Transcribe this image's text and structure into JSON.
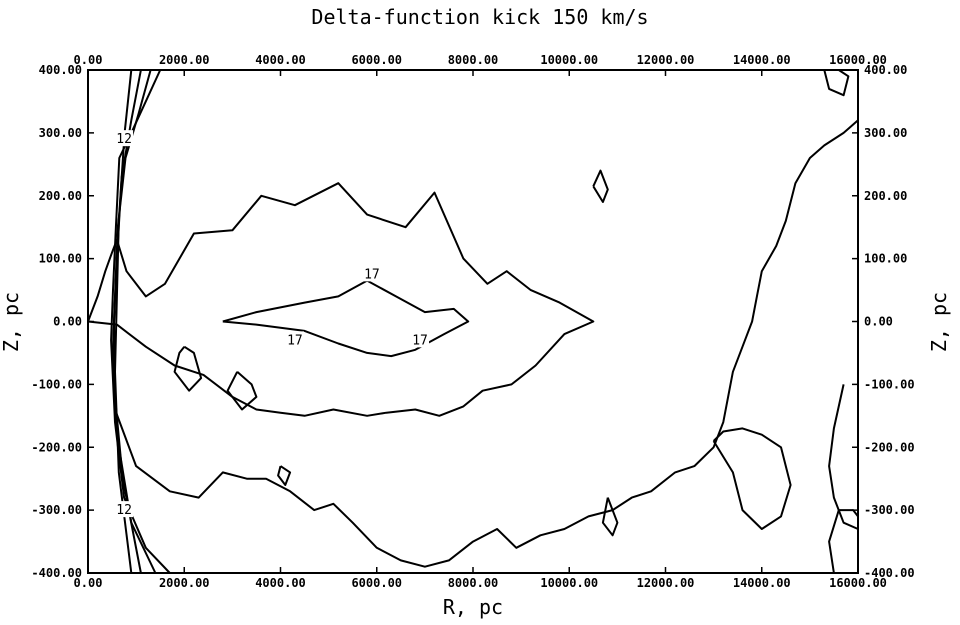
{
  "chart_data": {
    "type": "contour",
    "title": "Delta-function kick 150 km/s",
    "xlabel": "R, pc",
    "ylabel_left": "Z, pc",
    "ylabel_right": "Z, pc",
    "xlim": [
      0,
      16000
    ],
    "ylim": [
      -400,
      400
    ],
    "x_ticks": [
      "0.00",
      "2000.00",
      "4000.00",
      "6000.00",
      "8000.00",
      "10000.00",
      "12000.00",
      "14000.00",
      "16000.00"
    ],
    "y_ticks": [
      "400.00",
      "300.00",
      "200.00",
      "100.00",
      "0.00",
      "-100.00",
      "-200.00",
      "-300.00",
      "-400.00"
    ],
    "contour_labels": [
      {
        "text": "12",
        "x": 750,
        "y": 290
      },
      {
        "text": "12",
        "x": 750,
        "y": -300
      },
      {
        "text": "17",
        "x": 5900,
        "y": 75
      },
      {
        "text": "17",
        "x": 4300,
        "y": -30
      },
      {
        "text": "17",
        "x": 6900,
        "y": -30
      }
    ],
    "contours": [
      {
        "points": [
          [
            1500,
            400
          ],
          [
            1200,
            350
          ],
          [
            900,
            300
          ],
          [
            650,
            260
          ],
          [
            580,
            150
          ],
          [
            520,
            50
          ],
          [
            480,
            -30
          ],
          [
            560,
            -160
          ],
          [
            750,
            -280
          ],
          [
            1200,
            -360
          ],
          [
            1700,
            -400
          ]
        ]
      },
      {
        "points": [
          [
            1300,
            400
          ],
          [
            1050,
            330
          ],
          [
            780,
            260
          ],
          [
            620,
            150
          ],
          [
            560,
            40
          ],
          [
            520,
            -40
          ],
          [
            600,
            -180
          ],
          [
            900,
            -320
          ],
          [
            1400,
            -400
          ]
        ]
      },
      {
        "points": [
          [
            1100,
            400
          ],
          [
            900,
            320
          ],
          [
            700,
            230
          ],
          [
            600,
            100
          ],
          [
            540,
            0
          ],
          [
            560,
            -120
          ],
          [
            720,
            -250
          ],
          [
            1100,
            -400
          ]
        ]
      },
      {
        "points": [
          [
            900,
            400
          ],
          [
            760,
            300
          ],
          [
            640,
            160
          ],
          [
            600,
            40
          ],
          [
            560,
            -80
          ],
          [
            640,
            -240
          ],
          [
            900,
            -400
          ]
        ]
      },
      {
        "points": [
          [
            0,
            0
          ],
          [
            200,
            40
          ],
          [
            360,
            80
          ],
          [
            500,
            110
          ],
          [
            600,
            130
          ],
          [
            800,
            80
          ],
          [
            1200,
            40
          ],
          [
            1600,
            60
          ],
          [
            2200,
            140
          ],
          [
            3000,
            145
          ],
          [
            3600,
            200
          ],
          [
            4300,
            185
          ],
          [
            5200,
            220
          ],
          [
            5800,
            170
          ],
          [
            6600,
            150
          ],
          [
            7200,
            205
          ],
          [
            7800,
            100
          ],
          [
            8300,
            60
          ],
          [
            8700,
            80
          ],
          [
            9200,
            50
          ],
          [
            9800,
            30
          ],
          [
            10500,
            0
          ],
          [
            9900,
            -20
          ],
          [
            9300,
            -70
          ],
          [
            8800,
            -100
          ],
          [
            8200,
            -110
          ],
          [
            7800,
            -135
          ],
          [
            7300,
            -150
          ],
          [
            6800,
            -140
          ],
          [
            6200,
            -145
          ],
          [
            5800,
            -150
          ],
          [
            5100,
            -140
          ],
          [
            4500,
            -150
          ],
          [
            4000,
            -145
          ],
          [
            3500,
            -140
          ],
          [
            3000,
            -120
          ],
          [
            2400,
            -85
          ],
          [
            1800,
            -70
          ],
          [
            1200,
            -40
          ],
          [
            600,
            -5
          ],
          [
            0,
            0
          ]
        ]
      },
      {
        "points": [
          [
            2800,
            0
          ],
          [
            3500,
            15
          ],
          [
            4500,
            30
          ],
          [
            5200,
            40
          ],
          [
            5800,
            65
          ],
          [
            6400,
            40
          ],
          [
            7000,
            15
          ],
          [
            7600,
            20
          ],
          [
            7900,
            0
          ],
          [
            7400,
            -20
          ],
          [
            6800,
            -45
          ],
          [
            6300,
            -55
          ],
          [
            5800,
            -50
          ],
          [
            5200,
            -35
          ],
          [
            4500,
            -15
          ],
          [
            3500,
            -5
          ],
          [
            2800,
            0
          ]
        ]
      },
      {
        "points": [
          [
            560,
            -140
          ],
          [
            1000,
            -230
          ],
          [
            1700,
            -270
          ],
          [
            2300,
            -280
          ],
          [
            2800,
            -240
          ],
          [
            3300,
            -250
          ],
          [
            3700,
            -250
          ],
          [
            4200,
            -270
          ],
          [
            4700,
            -300
          ],
          [
            5100,
            -290
          ],
          [
            5500,
            -320
          ],
          [
            6000,
            -360
          ],
          [
            6500,
            -380
          ],
          [
            7000,
            -390
          ],
          [
            7500,
            -380
          ],
          [
            8000,
            -350
          ],
          [
            8500,
            -330
          ],
          [
            8900,
            -360
          ],
          [
            9400,
            -340
          ],
          [
            9900,
            -330
          ],
          [
            10400,
            -310
          ],
          [
            10900,
            -300
          ],
          [
            11300,
            -280
          ],
          [
            11700,
            -270
          ],
          [
            12200,
            -240
          ],
          [
            12600,
            -230
          ],
          [
            13000,
            -200
          ],
          [
            13200,
            -160
          ],
          [
            13300,
            -120
          ],
          [
            13400,
            -80
          ],
          [
            13600,
            -40
          ],
          [
            13800,
            0
          ],
          [
            13900,
            40
          ],
          [
            14000,
            80
          ],
          [
            14300,
            120
          ],
          [
            14500,
            160
          ],
          [
            14700,
            220
          ],
          [
            15000,
            260
          ],
          [
            15300,
            280
          ],
          [
            15700,
            300
          ],
          [
            16000,
            320
          ]
        ]
      },
      {
        "points": [
          [
            2000,
            -40
          ],
          [
            2200,
            -50
          ],
          [
            2350,
            -90
          ],
          [
            2100,
            -110
          ],
          [
            1800,
            -80
          ],
          [
            1900,
            -50
          ],
          [
            2000,
            -40
          ]
        ]
      },
      {
        "points": [
          [
            3100,
            -80
          ],
          [
            3400,
            -100
          ],
          [
            3500,
            -120
          ],
          [
            3200,
            -140
          ],
          [
            2900,
            -110
          ],
          [
            3100,
            -80
          ]
        ]
      },
      {
        "points": [
          [
            4000,
            -230
          ],
          [
            4200,
            -240
          ],
          [
            4100,
            -260
          ],
          [
            3950,
            -245
          ],
          [
            4000,
            -230
          ]
        ]
      },
      {
        "points": [
          [
            10500,
            215
          ],
          [
            10650,
            240
          ],
          [
            10800,
            210
          ],
          [
            10700,
            190
          ],
          [
            10500,
            215
          ]
        ]
      },
      {
        "points": [
          [
            10800,
            -280
          ],
          [
            11000,
            -320
          ],
          [
            10900,
            -340
          ],
          [
            10700,
            -320
          ],
          [
            10800,
            -280
          ]
        ]
      },
      {
        "points": [
          [
            13000,
            -190
          ],
          [
            13400,
            -240
          ],
          [
            13600,
            -300
          ],
          [
            14000,
            -330
          ],
          [
            14400,
            -310
          ],
          [
            14600,
            -260
          ],
          [
            14400,
            -200
          ],
          [
            14000,
            -180
          ],
          [
            13600,
            -170
          ],
          [
            13200,
            -175
          ],
          [
            13000,
            -190
          ]
        ]
      },
      {
        "points": [
          [
            15300,
            400
          ],
          [
            15400,
            370
          ],
          [
            15700,
            360
          ],
          [
            15800,
            390
          ],
          [
            15600,
            400
          ]
        ]
      },
      {
        "points": [
          [
            15700,
            -100
          ],
          [
            15500,
            -170
          ],
          [
            15400,
            -230
          ],
          [
            15500,
            -280
          ],
          [
            15700,
            -320
          ],
          [
            16000,
            -330
          ]
        ]
      },
      {
        "points": [
          [
            15500,
            -400
          ],
          [
            15400,
            -350
          ],
          [
            15600,
            -300
          ],
          [
            15900,
            -300
          ],
          [
            16000,
            -310
          ]
        ]
      }
    ]
  }
}
